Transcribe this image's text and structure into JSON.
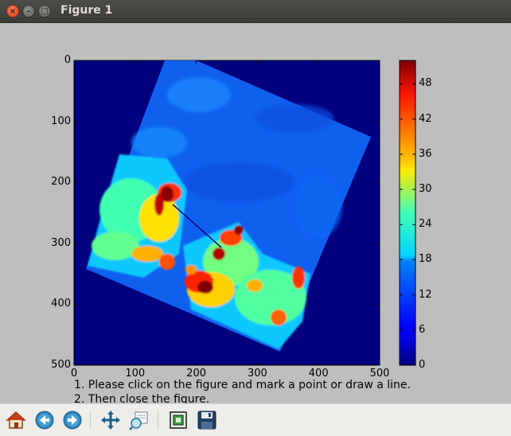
{
  "window": {
    "title": "Figure 1"
  },
  "plot": {
    "x_ticks": [
      "0",
      "100",
      "200",
      "300",
      "400",
      "500"
    ],
    "y_ticks": [
      "0",
      "100",
      "200",
      "300",
      "400",
      "500"
    ],
    "xlim": [
      0,
      500
    ],
    "ylim": [
      500,
      0
    ],
    "colormap": "jet"
  },
  "colorbar": {
    "ticks": [
      "0",
      "6",
      "12",
      "18",
      "24",
      "30",
      "36",
      "42",
      "48"
    ],
    "range": [
      0,
      52
    ]
  },
  "instructions": {
    "line1": "1. Please click on the figure and mark a point or draw a line.",
    "line2": "2. Then close the figure."
  },
  "toolbar": {
    "items": [
      {
        "name": "home-icon"
      },
      {
        "name": "back-arrow-icon"
      },
      {
        "name": "forward-arrow-icon"
      },
      {
        "name": "pan-icon"
      },
      {
        "name": "zoom-icon"
      },
      {
        "name": "subplots-icon"
      },
      {
        "name": "save-icon"
      }
    ]
  }
}
